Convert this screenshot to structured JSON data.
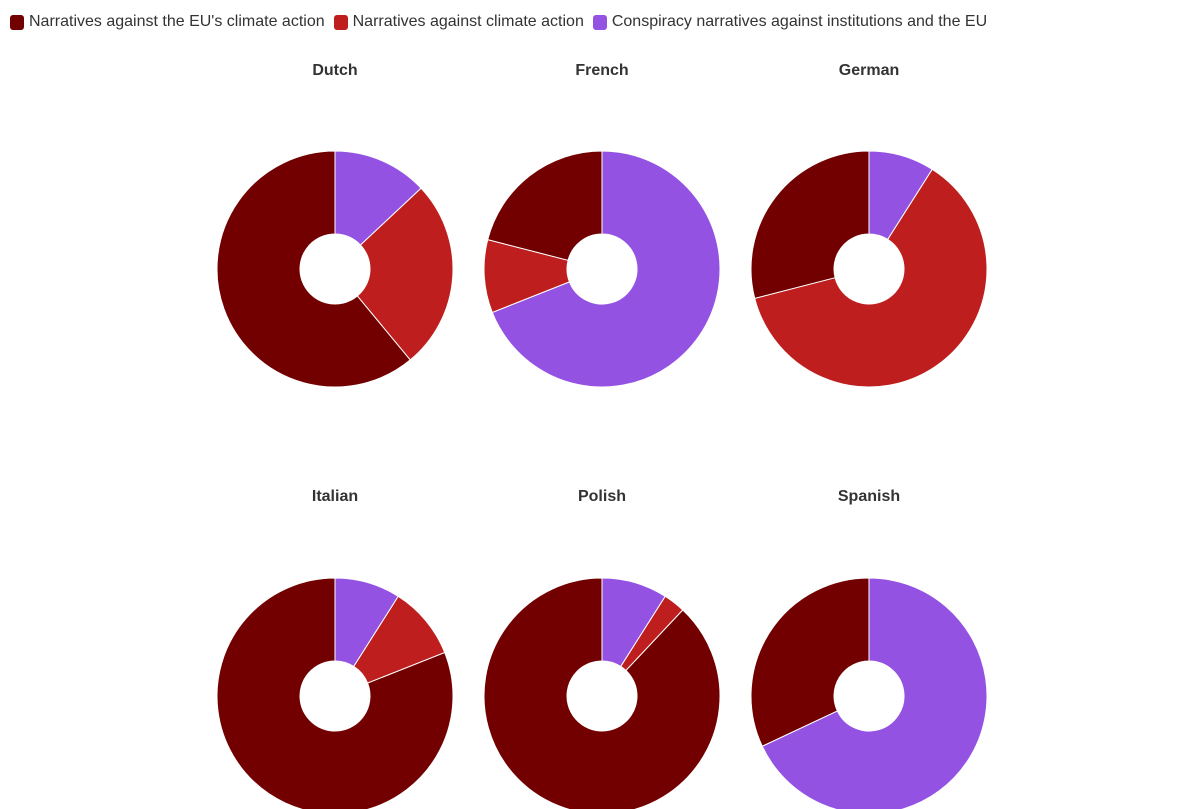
{
  "colors": {
    "eu_climate": "#730000",
    "climate": "#be1e1e",
    "conspiracy": "#9452e3"
  },
  "legend": [
    {
      "label": "Narratives against the EU's climate action",
      "color": "#730000"
    },
    {
      "label": "Narratives against climate action",
      "color": "#be1e1e"
    },
    {
      "label": "Conspiracy narratives against institutions and the EU",
      "color": "#9452e3"
    }
  ],
  "chart_data": {
    "type": "pie",
    "variant": "donut",
    "series_names": [
      "Narratives against the EU's climate action",
      "Narratives against climate action",
      "Conspiracy narratives against institutions and the EU"
    ],
    "charts": [
      {
        "title": "Dutch",
        "values": [
          61,
          26,
          13
        ]
      },
      {
        "title": "French",
        "values": [
          21,
          10,
          69
        ]
      },
      {
        "title": "German",
        "values": [
          29,
          62,
          9
        ]
      },
      {
        "title": "Italian",
        "values": [
          81,
          10,
          9
        ]
      },
      {
        "title": "Polish",
        "values": [
          88,
          3,
          9
        ]
      },
      {
        "title": "Spanish",
        "values": [
          32,
          0,
          68
        ]
      }
    ]
  }
}
